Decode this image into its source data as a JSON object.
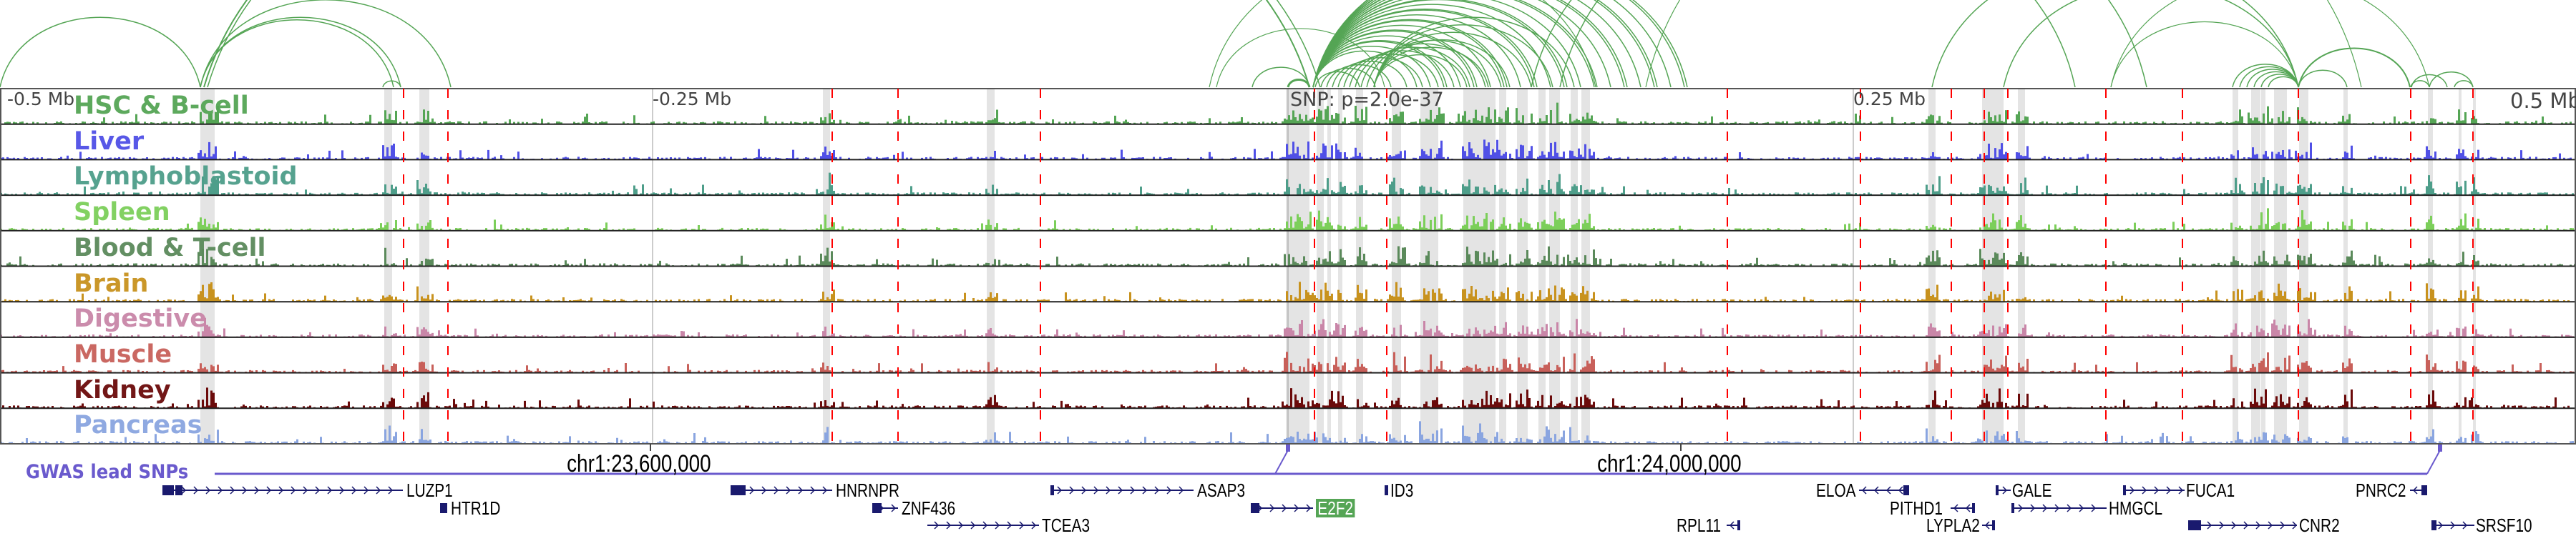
{
  "scale_labels": {
    "left": "-0.5 Mb",
    "left_mid": "-0.25 Mb",
    "right_mid": "0.25 Mb",
    "right": "0.5 Mb"
  },
  "snp_annotation": "SNP: p=2.0e-37",
  "tracks": [
    {
      "label": "HSC & B-cell",
      "color": "#55a555"
    },
    {
      "label": "Liver",
      "color": "#5050e6"
    },
    {
      "label": "Lymphoblastoid",
      "color": "#4e9e8a"
    },
    {
      "label": "Spleen",
      "color": "#7ccf5a"
    },
    {
      "label": "Blood & T-cell",
      "color": "#5b8a5b"
    },
    {
      "label": "Brain",
      "color": "#c8921e"
    },
    {
      "label": "Digestive",
      "color": "#c986a8"
    },
    {
      "label": "Muscle",
      "color": "#c8605a"
    },
    {
      "label": "Kidney",
      "color": "#6b0a0a"
    },
    {
      "label": "Pancreas",
      "color": "#8aa5e0"
    }
  ],
  "coordinates": [
    "chr1:23,600,000",
    "chr1:24,000,000"
  ],
  "gwas_label": "GWAS lead SNPs",
  "gwas_color": "#6a5acd",
  "gene_color": "#1a1a6e",
  "highlight_color": "#55a555",
  "arc_color": "#55a555",
  "marker_color": "#ff0000",
  "genes": [
    {
      "name": "LUZP1",
      "strand": "-"
    },
    {
      "name": "HTR1D",
      "strand": "-"
    },
    {
      "name": "HNRNPR",
      "strand": "-"
    },
    {
      "name": "ZNF436",
      "strand": "-"
    },
    {
      "name": "TCEA3",
      "strand": "-"
    },
    {
      "name": "ASAP3",
      "strand": "-"
    },
    {
      "name": "E2F2",
      "strand": "-",
      "highlighted": true
    },
    {
      "name": "ID3",
      "strand": "-"
    },
    {
      "name": "RPL11",
      "strand": "+"
    },
    {
      "name": "ELOA",
      "strand": "+"
    },
    {
      "name": "PITHD1",
      "strand": "+"
    },
    {
      "name": "LYPLA2",
      "strand": "+"
    },
    {
      "name": "GALE",
      "strand": "-"
    },
    {
      "name": "HMGCL",
      "strand": "-"
    },
    {
      "name": "FUCA1",
      "strand": "-"
    },
    {
      "name": "CNR2",
      "strand": "-"
    },
    {
      "name": "PNRC2",
      "strand": "+"
    },
    {
      "name": "SRSF10",
      "strand": "-"
    }
  ]
}
